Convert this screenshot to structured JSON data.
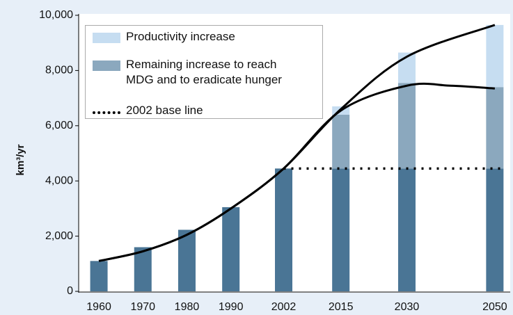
{
  "chart_data": {
    "type": "stacked-bar-line",
    "y_label": "km³/yr",
    "x": [
      1960,
      1970,
      1980,
      1990,
      2002,
      2015,
      2030,
      2050
    ],
    "xlim": [
      1955.4,
      2053.5
    ],
    "ylim": [
      0,
      10000
    ],
    "yticks": [
      0,
      {
        "value": 2000,
        "label": "2,000"
      },
      {
        "value": 4000,
        "label": "4,000"
      },
      {
        "value": 6000,
        "label": "6,000"
      },
      {
        "value": 8000,
        "label": "8,000"
      },
      {
        "value": 10000,
        "label": "10,000"
      }
    ],
    "series": [
      {
        "color": "#4a7595",
        "values": [
          1100,
          1600,
          2230,
          3050,
          4450,
          4450,
          4450,
          4450
        ]
      },
      {
        "name": "Remaining increase to reach\nMDG and to eradicate hunger",
        "color": "#8ba8be",
        "values": [
          null,
          null,
          null,
          null,
          null,
          1950,
          3100,
          2950
        ]
      },
      {
        "name": "Productivity increase",
        "color": "#c6ddf1",
        "values": [
          null,
          null,
          null,
          null,
          null,
          300,
          1100,
          2250
        ]
      }
    ],
    "baseline": {
      "name": "2002 base line",
      "value": 4450,
      "x": [
        2002,
        2050
      ]
    },
    "curves": [
      {
        "color": "#000000",
        "x": [
          1960,
          1970,
          1980,
          1990,
          2002,
          2015,
          2030,
          2050
        ],
        "values": [
          1100,
          1450,
          2050,
          3000,
          4450,
          6600,
          8500,
          9650
        ]
      },
      {
        "color": "#000000",
        "x": [
          1960,
          1970,
          1980,
          1990,
          2002,
          2015,
          2030,
          2040,
          2050
        ],
        "values": [
          1100,
          1450,
          2050,
          3000,
          4450,
          6550,
          7450,
          7450,
          7350
        ]
      }
    ]
  }
}
